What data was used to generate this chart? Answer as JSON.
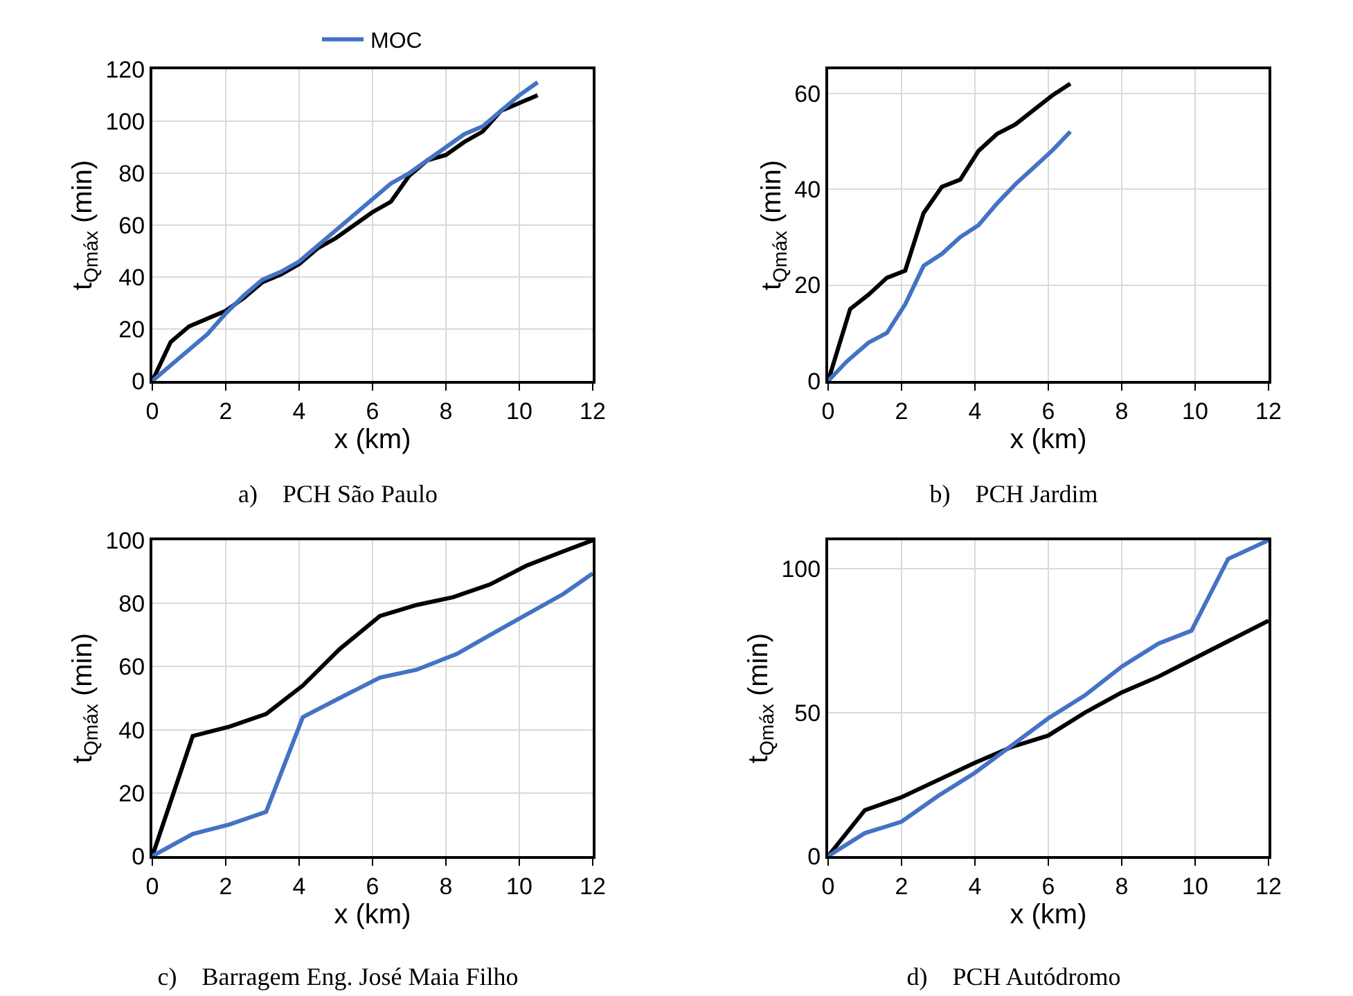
{
  "chart_data": [
    {
      "type": "line",
      "title": "a)    PCH São Paulo",
      "xlabel": "x (km)",
      "ylabel": "t$_{Qmáx}$ (min)",
      "xlim": [
        0,
        12
      ],
      "xticks": [
        0,
        2,
        4,
        6,
        8,
        10,
        12
      ],
      "ylim": [
        0,
        120
      ],
      "yticks": [
        0,
        20,
        40,
        60,
        80,
        100,
        120
      ],
      "grid": true,
      "legend": "top",
      "marker": "none",
      "line_style": "solid",
      "series": [
        {
          "color": "#000000",
          "x": [
            0,
            0.5,
            1,
            1.5,
            2,
            2.5,
            3,
            3.5,
            4,
            4.5,
            5,
            5.5,
            6,
            6.5,
            7,
            7.5,
            8,
            8.5,
            9,
            9.5,
            10,
            10.5
          ],
          "values": [
            0,
            15,
            21,
            24,
            27,
            32,
            38,
            41,
            45,
            51,
            55,
            60,
            65,
            69,
            79,
            85,
            87,
            92,
            96,
            104,
            107,
            110
          ]
        },
        {
          "name": "MOC",
          "color": "#4472c4",
          "x": [
            0,
            0.5,
            1,
            1.5,
            2,
            2.5,
            3,
            3.5,
            4,
            4.5,
            5,
            5.5,
            6,
            6.5,
            7,
            7.5,
            8,
            8.5,
            9,
            9.5,
            10,
            10.5
          ],
          "values": [
            0,
            6,
            12,
            18,
            26,
            33,
            39,
            42,
            46,
            52,
            58,
            64,
            70,
            76,
            80,
            85,
            90,
            95,
            98,
            104,
            110,
            115
          ]
        }
      ]
    },
    {
      "type": "line",
      "title": "b)    PCH Jardim",
      "xlabel": "x (km)",
      "ylabel": "t$_{Qmáx}$ (min)",
      "xlim": [
        0,
        12
      ],
      "xticks": [
        0,
        2,
        4,
        6,
        8,
        10,
        12
      ],
      "ylim": [
        0,
        65
      ],
      "yticks": [
        0,
        20,
        40,
        60
      ],
      "grid": true,
      "marker": "none",
      "line_style": "solid",
      "series": [
        {
          "color": "#000000",
          "x": [
            0,
            0.6,
            1.1,
            1.6,
            2.1,
            2.6,
            3.1,
            3.6,
            4.1,
            4.6,
            5.1,
            5.6,
            6.1,
            6.6
          ],
          "values": [
            0,
            15,
            18,
            21.5,
            23,
            35,
            40.5,
            42,
            48,
            51.5,
            53.5,
            56.5,
            59.5,
            62
          ]
        },
        {
          "color": "#4472c4",
          "x": [
            0,
            0.5,
            1.1,
            1.6,
            2.1,
            2.6,
            3.1,
            3.6,
            4.1,
            4.6,
            5.1,
            5.6,
            6.1,
            6.6
          ],
          "values": [
            0,
            4,
            8,
            10,
            16,
            24,
            26.5,
            30,
            32.5,
            37,
            41,
            44.5,
            48,
            52
          ]
        }
      ]
    },
    {
      "type": "line",
      "title": "c)    Barragem Eng. José Maia Filho",
      "xlabel": "x (km)",
      "ylabel": "t$_{Qmáx}$ (min)",
      "xlim": [
        0,
        12
      ],
      "xticks": [
        0,
        2,
        4,
        6,
        8,
        10,
        12
      ],
      "ylim": [
        0,
        100
      ],
      "yticks": [
        0,
        20,
        40,
        60,
        80,
        100
      ],
      "grid": true,
      "marker": "none",
      "line_style": "solid",
      "series": [
        {
          "color": "#000000",
          "x": [
            0,
            1.1,
            2.1,
            3.1,
            4.1,
            5.1,
            6.2,
            7.2,
            8.2,
            9.2,
            10.2,
            11.2,
            12
          ],
          "values": [
            0,
            38,
            41,
            45,
            54,
            65.5,
            76,
            79.5,
            82,
            86,
            92,
            96.5,
            100
          ]
        },
        {
          "color": "#4472c4",
          "x": [
            0,
            1.1,
            2.1,
            3.1,
            4.1,
            5.1,
            6.2,
            7.2,
            8.3,
            9.2,
            10.2,
            11.2,
            12
          ],
          "values": [
            0,
            7,
            10,
            14,
            44,
            50,
            56.5,
            59,
            64,
            70,
            76.5,
            83,
            89.5
          ]
        }
      ]
    },
    {
      "type": "line",
      "title": "d)    PCH Autódromo",
      "xlabel": "x (km)",
      "ylabel": "t$_{Qmáx}$ (min)",
      "xlim": [
        0,
        12
      ],
      "xticks": [
        0,
        2,
        4,
        6,
        8,
        10,
        12
      ],
      "ylim": [
        0,
        110
      ],
      "yticks": [
        0,
        50,
        100
      ],
      "grid": true,
      "marker": "none",
      "line_style": "solid",
      "series": [
        {
          "color": "#000000",
          "x": [
            0,
            1,
            2,
            3,
            4,
            5,
            6,
            7,
            8,
            9,
            10,
            11,
            12
          ],
          "values": [
            0,
            16,
            20.5,
            26.5,
            32.5,
            38,
            42,
            50,
            57,
            62.5,
            69,
            75.5,
            82
          ]
        },
        {
          "color": "#4472c4",
          "x": [
            0,
            1,
            2,
            3,
            4,
            5,
            6,
            7,
            8,
            9,
            9.9,
            10.9,
            12
          ],
          "values": [
            0,
            8,
            12,
            21,
            29,
            38.5,
            48,
            56,
            66,
            74,
            78.5,
            103.5,
            110
          ]
        }
      ]
    }
  ]
}
